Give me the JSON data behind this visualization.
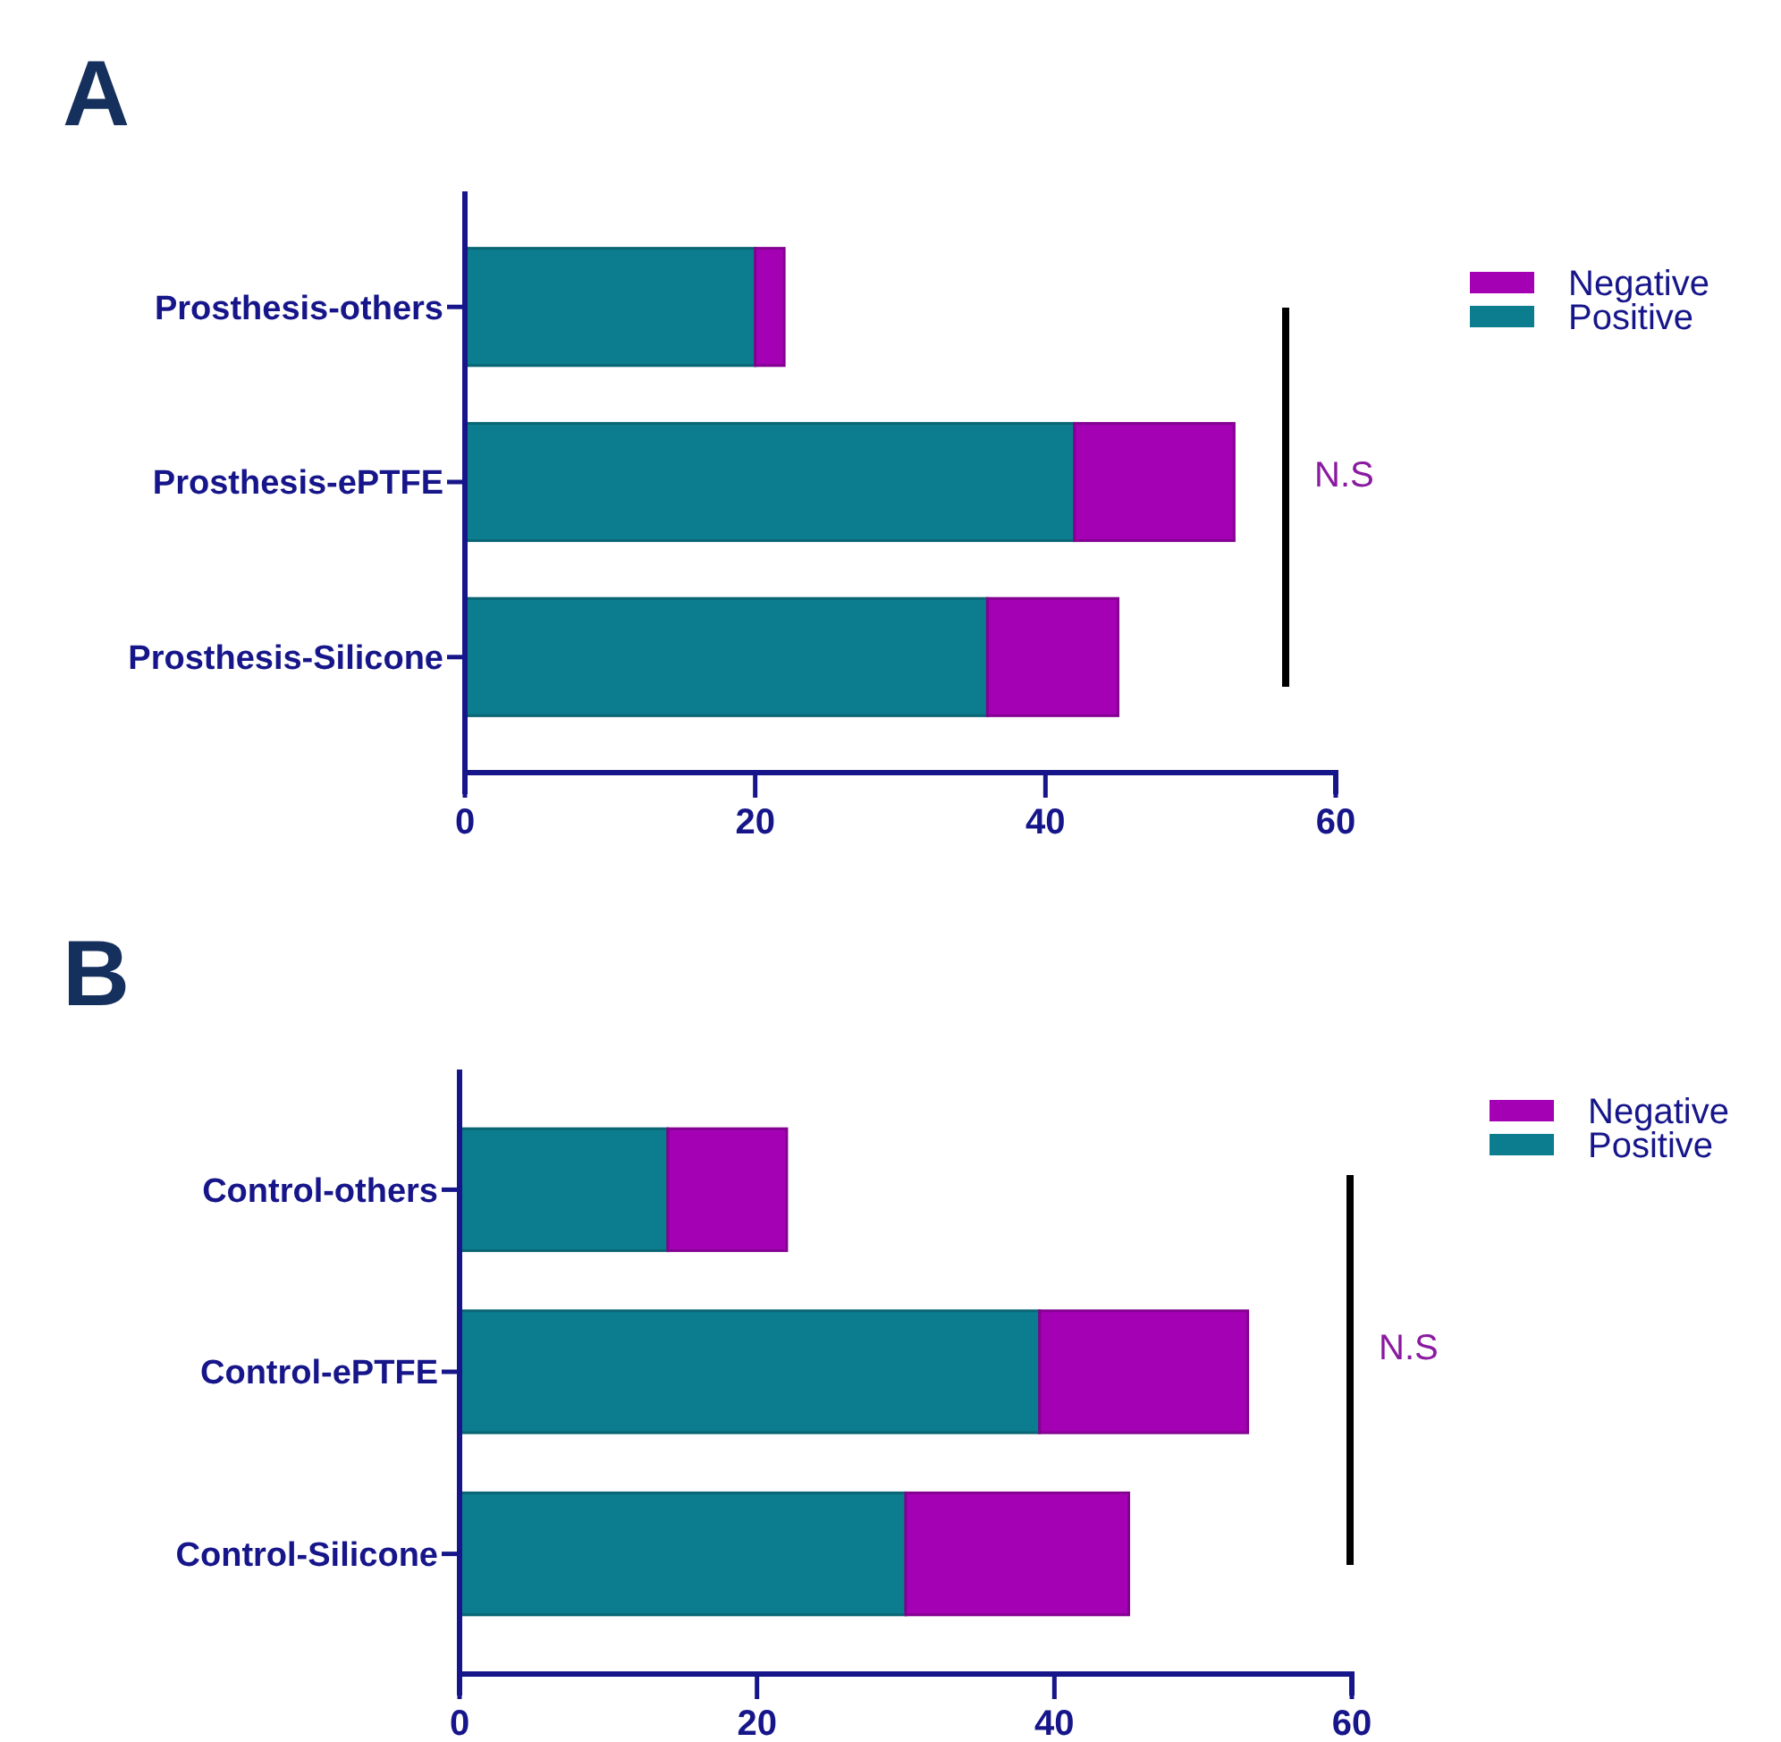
{
  "chart_data": [
    {
      "type": "bar",
      "title": "A",
      "orientation": "horizontal",
      "stacked": true,
      "categories": [
        "Prosthesis-others",
        "Prosthesis-ePTFE",
        "Prosthesis-Silicone"
      ],
      "series": [
        {
          "name": "Positive",
          "color": "#0b7d8e",
          "values": [
            20,
            42,
            36
          ]
        },
        {
          "name": "Negative",
          "color": "#a400b4",
          "values": [
            2,
            11,
            9
          ]
        }
      ],
      "xlim": [
        0,
        60
      ],
      "xticks": [
        0,
        20,
        40,
        60
      ],
      "annotations": [
        "N.S"
      ],
      "legend": "top right",
      "grid": false
    },
    {
      "type": "bar",
      "title": "B",
      "orientation": "horizontal",
      "stacked": true,
      "categories": [
        "Control-others",
        "Control-ePTFE",
        "Control-Silicone"
      ],
      "series": [
        {
          "name": "Positive",
          "color": "#0b7d8e",
          "values": [
            14,
            39,
            30
          ]
        },
        {
          "name": "Negative",
          "color": "#a400b4",
          "values": [
            8,
            14,
            15
          ]
        }
      ],
      "xlim": [
        0,
        60
      ],
      "xticks": [
        0,
        20,
        40,
        60
      ],
      "annotations": [
        "N.S"
      ],
      "legend": "top right",
      "grid": false
    }
  ]
}
